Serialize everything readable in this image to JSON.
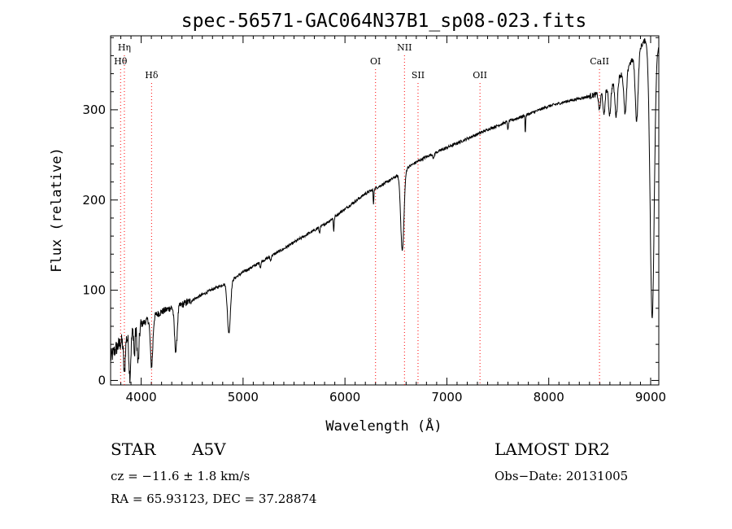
{
  "chart_data": {
    "type": "line",
    "title": "spec-56571-GAC064N37B1_sp08-023.fits",
    "xlabel": "Wavelength (Å)",
    "ylabel": "Flux (relative)",
    "xlim": [
      3700,
      9080
    ],
    "ylim": [
      -5,
      382
    ],
    "xticks": [
      4000,
      5000,
      6000,
      7000,
      8000,
      9000
    ],
    "yticks": [
      0,
      100,
      200,
      300
    ],
    "grid": false,
    "line_color": "#000000",
    "marker_color": "#ff0000",
    "continuum": [
      [
        3700,
        25
      ],
      [
        3750,
        35
      ],
      [
        3800,
        42
      ],
      [
        3850,
        46
      ],
      [
        3900,
        52
      ],
      [
        3950,
        57
      ],
      [
        4000,
        62
      ],
      [
        4100,
        70
      ],
      [
        4200,
        76
      ],
      [
        4300,
        81
      ],
      [
        4400,
        84
      ],
      [
        4500,
        89
      ],
      [
        4600,
        95
      ],
      [
        4700,
        101
      ],
      [
        4800,
        106
      ],
      [
        4900,
        112
      ],
      [
        5000,
        120
      ],
      [
        5200,
        133
      ],
      [
        5400,
        146
      ],
      [
        5600,
        160
      ],
      [
        5800,
        173
      ],
      [
        6000,
        190
      ],
      [
        6200,
        207
      ],
      [
        6400,
        219
      ],
      [
        6500,
        226
      ],
      [
        6600,
        235
      ],
      [
        6700,
        242
      ],
      [
        6800,
        248
      ],
      [
        7000,
        258
      ],
      [
        7200,
        268
      ],
      [
        7400,
        278
      ],
      [
        7600,
        287
      ],
      [
        7800,
        295
      ],
      [
        8000,
        304
      ],
      [
        8200,
        310
      ],
      [
        8400,
        315
      ],
      [
        8500,
        318
      ],
      [
        8600,
        325
      ],
      [
        8700,
        338
      ],
      [
        8800,
        352
      ],
      [
        8900,
        370
      ],
      [
        8950,
        378
      ],
      [
        9000,
        370
      ]
    ],
    "absorption_lines": [
      {
        "center": 3835,
        "depth": 38,
        "width": 8
      },
      {
        "center": 3889,
        "depth": 45,
        "width": 9
      },
      {
        "center": 3934,
        "depth": 30,
        "width": 5
      },
      {
        "center": 3970,
        "depth": 40,
        "width": 9
      },
      {
        "center": 4102,
        "depth": 55,
        "width": 12
      },
      {
        "center": 4340,
        "depth": 50,
        "width": 13
      },
      {
        "center": 4861,
        "depth": 57,
        "width": 15
      },
      {
        "center": 5170,
        "depth": 6,
        "width": 5
      },
      {
        "center": 5270,
        "depth": 5,
        "width": 5
      },
      {
        "center": 5750,
        "depth": 6,
        "width": 5
      },
      {
        "center": 5890,
        "depth": 15,
        "width": 4
      },
      {
        "center": 6280,
        "depth": 18,
        "width": 3
      },
      {
        "center": 6563,
        "depth": 88,
        "width": 16
      },
      {
        "center": 6870,
        "depth": 6,
        "width": 6
      },
      {
        "center": 7600,
        "depth": 10,
        "width": 4
      },
      {
        "center": 7770,
        "depth": 20,
        "width": 3
      },
      {
        "center": 8498,
        "depth": 18,
        "width": 9
      },
      {
        "center": 8542,
        "depth": 28,
        "width": 9
      },
      {
        "center": 8598,
        "depth": 30,
        "width": 11
      },
      {
        "center": 8662,
        "depth": 40,
        "width": 12
      },
      {
        "center": 8750,
        "depth": 50,
        "width": 13
      },
      {
        "center": 8863,
        "depth": 75,
        "width": 14
      },
      {
        "center": 9015,
        "depth": 300,
        "width": 20
      }
    ],
    "line_markers": [
      {
        "label": "Hη",
        "wavelength": 3835,
        "row": 1
      },
      {
        "label": "Hθ",
        "wavelength": 3798,
        "row": 2
      },
      {
        "label": "Hδ",
        "wavelength": 4102,
        "row": 3
      },
      {
        "label": "OI",
        "wavelength": 6300,
        "row": 2
      },
      {
        "label": "NII",
        "wavelength": 6584,
        "row": 1
      },
      {
        "label": "SII",
        "wavelength": 6717,
        "row": 3
      },
      {
        "label": "OII",
        "wavelength": 7325,
        "row": 3
      },
      {
        "label": "CaII",
        "wavelength": 8498,
        "row": 2
      }
    ]
  },
  "info": {
    "object_type": "STAR",
    "subclass": "A5V",
    "redshift": "cz = −11.6 ± 1.8 km/s",
    "coords": "RA =  65.93123, DEC =  37.28874",
    "survey": "LAMOST DR2",
    "obs_date": "Obs−Date: 20131005"
  }
}
